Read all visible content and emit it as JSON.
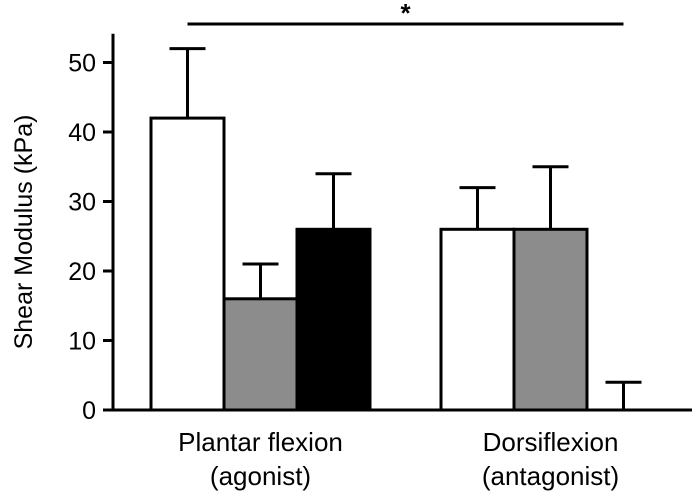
{
  "chart_data": {
    "type": "bar",
    "ylabel": "Shear Modulus (kPa)",
    "ylim": [
      0,
      55
    ],
    "yticks": [
      0,
      10,
      20,
      30,
      40,
      50
    ],
    "yticks_text": [
      "0",
      "10",
      "20",
      "30",
      "40",
      "50"
    ],
    "grid": false,
    "legend": "none",
    "categories": [
      {
        "line1": "Plantar flexion",
        "line2": "(agonist)"
      },
      {
        "line1": "Dorsiflexion",
        "line2": "(antagonist)"
      }
    ],
    "series": [
      {
        "fill": "#ffffff",
        "values": [
          42,
          26
        ],
        "errors": [
          10,
          6
        ]
      },
      {
        "fill": "#8c8c8c",
        "values": [
          16,
          26
        ],
        "errors": [
          5,
          9
        ]
      },
      {
        "fill": "#000000",
        "values": [
          26,
          0
        ],
        "errors": [
          8,
          4
        ]
      }
    ],
    "significance": {
      "label": "*",
      "from_category": 0,
      "to_category": 1
    }
  }
}
